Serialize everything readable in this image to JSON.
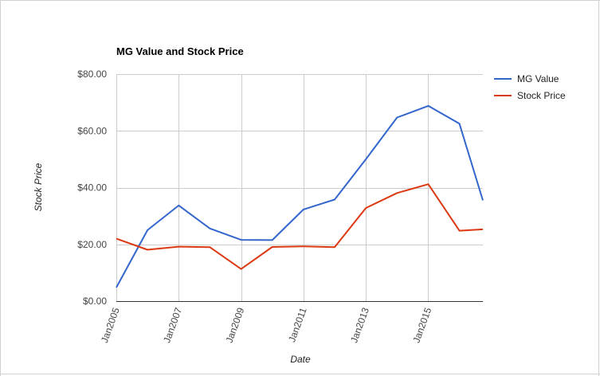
{
  "chart_data": {
    "type": "line",
    "title": "MG Value and Stock Price",
    "xlabel": "Date",
    "ylabel": "Stock Price",
    "x": [
      "2005-01",
      "2006-01",
      "2007-01",
      "2008-01",
      "2009-01",
      "2010-01",
      "2011-01",
      "2012-01",
      "2013-01",
      "2014-01",
      "2015-01",
      "2016-01",
      "2016-10"
    ],
    "xtick_labels": [
      "Jan2005",
      "Jan2007",
      "Jan2009",
      "Jan2011",
      "Jan2013",
      "Jan2015"
    ],
    "xtick_dates": [
      "2005-01",
      "2007-01",
      "2009-01",
      "2011-01",
      "2013-01",
      "2015-01"
    ],
    "ytick_labels": [
      "$0.00",
      "$20.00",
      "$40.00",
      "$60.00",
      "$80.00"
    ],
    "ytick_values": [
      0,
      20,
      40,
      60,
      80
    ],
    "ylim": [
      0,
      80
    ],
    "grid": true,
    "legend_position": "right",
    "series": [
      {
        "name": "MG Value",
        "color": "#3366cc",
        "values": [
          4.8,
          25.0,
          33.7,
          25.6,
          21.6,
          21.5,
          32.3,
          35.8,
          50.0,
          64.7,
          68.8,
          62.5,
          35.5
        ]
      },
      {
        "name": "Stock Price",
        "color": "#dc3912",
        "values": [
          22.0,
          18.1,
          19.2,
          19.0,
          11.3,
          19.1,
          19.3,
          19.0,
          32.8,
          38.1,
          41.2,
          24.8,
          25.3
        ]
      }
    ]
  }
}
